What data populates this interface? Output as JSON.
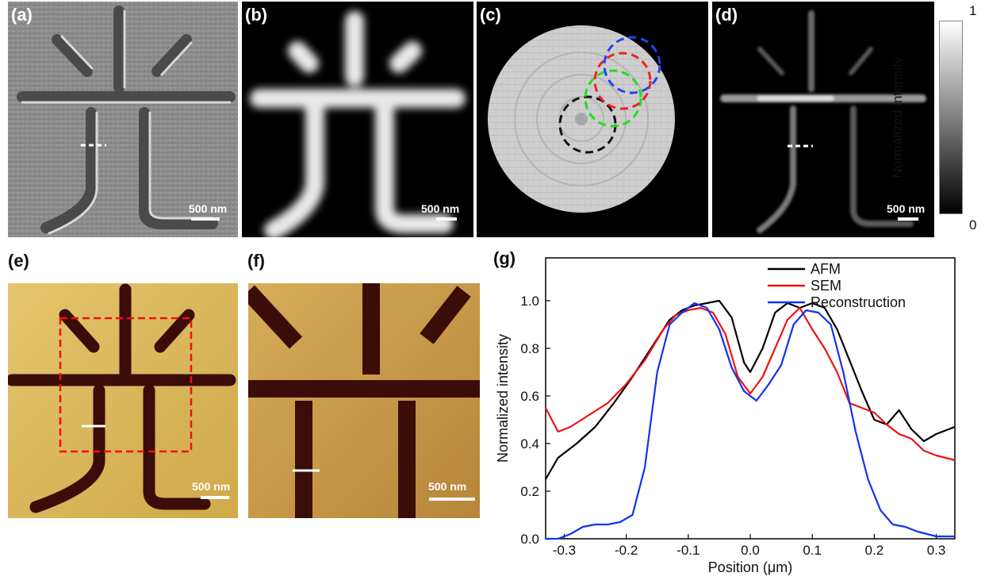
{
  "panels": {
    "a": {
      "label": "(a)",
      "scale": "500 nm"
    },
    "b": {
      "label": "(b)",
      "scale": "500 nm"
    },
    "c": {
      "label": "(c)"
    },
    "d": {
      "label": "(d)",
      "scale": "500 nm"
    },
    "e": {
      "label": "(e)",
      "scale": "500 nm"
    },
    "f": {
      "label": "(f)",
      "scale": "500 nm"
    },
    "g": {
      "label": "(g)"
    }
  },
  "colorbar": {
    "max": "1",
    "min": "0",
    "title": "Normalized intensity"
  },
  "colors": {
    "afm": "#000000",
    "sem": "#ee1111",
    "reconstruction": "#1133ee",
    "probe_black": "#111111",
    "probe_green": "#22dd22",
    "probe_red": "#ee2222",
    "probe_blue": "#2244ee"
  },
  "chart_data": {
    "type": "line",
    "xlabel": "Position (μm)",
    "ylabel": "Normalized intensity",
    "xlim": [
      -0.33,
      0.33
    ],
    "ylim": [
      0,
      1.18
    ],
    "xticks": [
      "-0.3",
      "-0.2",
      "-0.1",
      "0.0",
      "0.1",
      "0.2",
      "0.3"
    ],
    "yticks": [
      "0.0",
      "0.2",
      "0.4",
      "0.6",
      "0.8",
      "1.0"
    ],
    "legend_position": "top-right",
    "series": [
      {
        "name": "AFM",
        "color": "#000000",
        "x": [
          -0.33,
          -0.31,
          -0.28,
          -0.25,
          -0.22,
          -0.19,
          -0.16,
          -0.13,
          -0.11,
          -0.09,
          -0.07,
          -0.05,
          -0.03,
          -0.01,
          0.0,
          0.02,
          0.04,
          0.06,
          0.08,
          0.1,
          0.12,
          0.14,
          0.16,
          0.18,
          0.2,
          0.22,
          0.24,
          0.26,
          0.28,
          0.3,
          0.33
        ],
        "y": [
          0.25,
          0.34,
          0.4,
          0.47,
          0.57,
          0.68,
          0.8,
          0.92,
          0.96,
          0.98,
          0.99,
          1.0,
          0.93,
          0.74,
          0.7,
          0.8,
          0.95,
          0.99,
          0.97,
          0.99,
          0.97,
          0.88,
          0.75,
          0.62,
          0.5,
          0.48,
          0.54,
          0.46,
          0.41,
          0.44,
          0.47
        ]
      },
      {
        "name": "SEM",
        "color": "#ee1111",
        "x": [
          -0.33,
          -0.31,
          -0.29,
          -0.26,
          -0.23,
          -0.2,
          -0.17,
          -0.14,
          -0.12,
          -0.1,
          -0.08,
          -0.06,
          -0.04,
          -0.02,
          0.0,
          0.02,
          0.04,
          0.06,
          0.08,
          0.1,
          0.12,
          0.14,
          0.16,
          0.18,
          0.2,
          0.22,
          0.24,
          0.26,
          0.28,
          0.3,
          0.33
        ],
        "y": [
          0.55,
          0.45,
          0.47,
          0.52,
          0.57,
          0.65,
          0.75,
          0.88,
          0.94,
          0.96,
          0.97,
          0.95,
          0.86,
          0.68,
          0.61,
          0.68,
          0.8,
          0.92,
          0.97,
          0.88,
          0.8,
          0.7,
          0.57,
          0.55,
          0.53,
          0.48,
          0.44,
          0.42,
          0.37,
          0.35,
          0.33
        ]
      },
      {
        "name": "Reconstruction",
        "color": "#1133ee",
        "x": [
          -0.33,
          -0.31,
          -0.29,
          -0.27,
          -0.25,
          -0.23,
          -0.21,
          -0.19,
          -0.17,
          -0.15,
          -0.13,
          -0.11,
          -0.09,
          -0.07,
          -0.05,
          -0.03,
          -0.01,
          0.01,
          0.03,
          0.05,
          0.07,
          0.09,
          0.11,
          0.13,
          0.15,
          0.17,
          0.19,
          0.21,
          0.23,
          0.25,
          0.27,
          0.3,
          0.33
        ],
        "y": [
          0.0,
          0.0,
          0.02,
          0.05,
          0.06,
          0.06,
          0.07,
          0.1,
          0.3,
          0.7,
          0.9,
          0.95,
          0.99,
          0.97,
          0.88,
          0.72,
          0.62,
          0.58,
          0.65,
          0.73,
          0.9,
          0.96,
          0.95,
          0.9,
          0.7,
          0.45,
          0.25,
          0.12,
          0.06,
          0.05,
          0.03,
          0.01,
          0.01
        ]
      }
    ]
  }
}
